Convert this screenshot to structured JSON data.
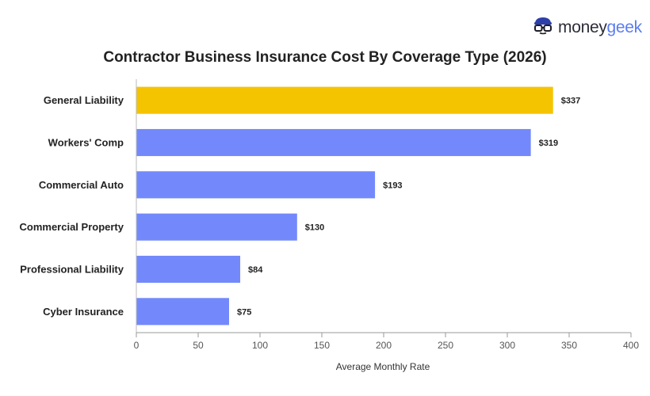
{
  "brand": {
    "money": "money",
    "geek": "geek",
    "icon": "nerd-glasses-icon"
  },
  "chart_data": {
    "type": "bar",
    "orientation": "horizontal",
    "title": "Contractor Business Insurance Cost By Coverage Type (2026)",
    "xlabel": "Average Monthly Rate",
    "ylabel": "",
    "categories": [
      "General Liability",
      "Workers' Comp",
      "Commercial Auto",
      "Commercial Property",
      "Professional Liability",
      "Cyber Insurance"
    ],
    "values": [
      337,
      319,
      193,
      130,
      84,
      75
    ],
    "value_labels": [
      "$337",
      "$319",
      "$193",
      "$130",
      "$84",
      "$75"
    ],
    "colors": [
      "#f5c400",
      "#7389fb",
      "#7389fb",
      "#7389fb",
      "#7389fb",
      "#7389fb"
    ],
    "xlim": [
      0,
      400
    ],
    "xticks": [
      0,
      50,
      100,
      150,
      200,
      250,
      300,
      350,
      400
    ],
    "grid": false,
    "legend": "none"
  }
}
